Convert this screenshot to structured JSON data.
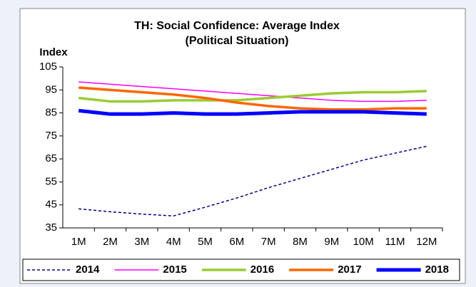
{
  "chart_data": {
    "type": "line",
    "title": "TH: Social Confidence: Average Index",
    "subtitle": "(Political Situation)",
    "y_label": "Index",
    "categories": [
      "1M",
      "2M",
      "3M",
      "4M",
      "5M",
      "6M",
      "7M",
      "8M",
      "9M",
      "10M",
      "11M",
      "12M"
    ],
    "ylim": [
      35,
      105
    ],
    "yticks": [
      35,
      45,
      55,
      65,
      75,
      85,
      95,
      105
    ],
    "legend": "bottom",
    "series": [
      {
        "name": "2014",
        "color": "#000080",
        "line_width": 1.5,
        "dashed": true,
        "values": [
          43.3,
          42,
          41,
          40.2,
          44,
          48,
          52.5,
          56.5,
          60.5,
          64.5,
          67.5,
          70.5
        ]
      },
      {
        "name": "2015",
        "color": "#ff00ff",
        "line_width": 1.5,
        "dashed": false,
        "values": [
          98.5,
          97.5,
          96.5,
          95.5,
          94.5,
          93.5,
          92.5,
          91.5,
          90.5,
          90,
          90,
          90.5
        ]
      },
      {
        "name": "2016",
        "color": "#99cc33",
        "line_width": 3.5,
        "dashed": false,
        "values": [
          91.5,
          90,
          90,
          90.5,
          90.5,
          90.5,
          91.5,
          92.5,
          93.5,
          94,
          94,
          94.5
        ]
      },
      {
        "name": "2017",
        "color": "#ff6600",
        "line_width": 3.5,
        "dashed": false,
        "values": [
          96,
          95,
          94,
          93,
          91.5,
          89.5,
          88,
          87,
          86.5,
          86.5,
          87,
          87
        ]
      },
      {
        "name": "2018",
        "color": "#0000ff",
        "line_width": 5,
        "dashed": false,
        "values": [
          86,
          84.5,
          84.5,
          85,
          84.5,
          84.5,
          85,
          85.5,
          85.5,
          85.5,
          85,
          84.5
        ]
      }
    ]
  }
}
